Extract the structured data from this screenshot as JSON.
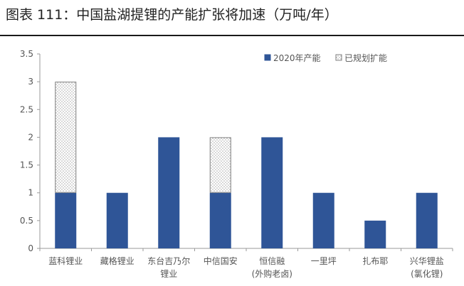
{
  "figure": {
    "title": "图表 111：中国盐湖提锂的产能扩张将加速（万吨/年）"
  },
  "chart_data": {
    "type": "bar",
    "stacked": true,
    "title": "",
    "xlabel": "",
    "ylabel": "",
    "ylim": [
      0,
      3.5
    ],
    "yticks": [
      "0",
      "0.5",
      "1",
      "1.5",
      "2",
      "2.5",
      "3",
      "3.5"
    ],
    "grid": false,
    "legend_position": "top-right",
    "categories": [
      [
        "蓝科锂业"
      ],
      [
        "藏格锂业"
      ],
      [
        "东台吉乃尔",
        "锂业"
      ],
      [
        "中信国安"
      ],
      [
        "恒信融",
        "(外购老卤)"
      ],
      [
        "一里坪"
      ],
      [
        "扎布耶"
      ],
      [
        "兴华锂盐",
        "(氯化锂)"
      ]
    ],
    "series": [
      {
        "name": "2020年产能",
        "color": "#2f5597",
        "pattern": "solid",
        "values": [
          1,
          1,
          2,
          1,
          2,
          1,
          0.5,
          1
        ]
      },
      {
        "name": "已规划扩能",
        "color": "#ffffff",
        "pattern": "dotted",
        "values": [
          2,
          0,
          0,
          1,
          0,
          0,
          0,
          0
        ]
      }
    ]
  }
}
